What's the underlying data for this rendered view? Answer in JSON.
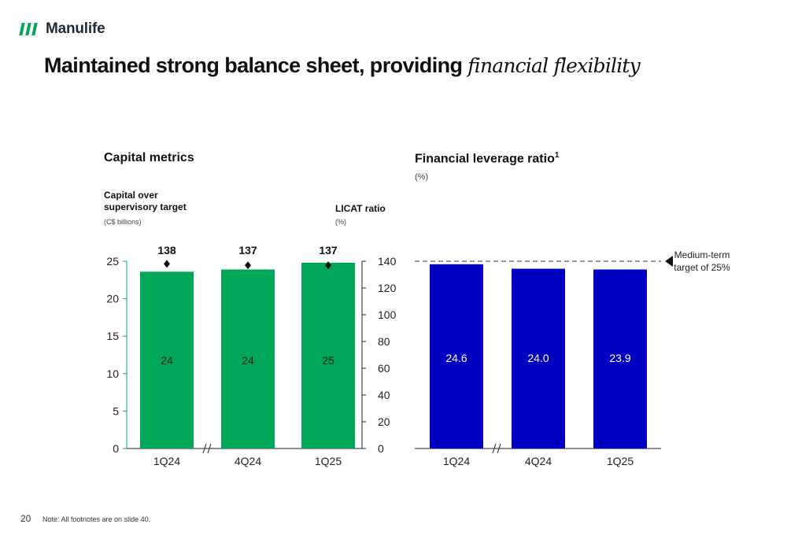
{
  "brand": {
    "name": "Manulife",
    "color": "#00a758"
  },
  "title": {
    "main": "Maintained strong balance sheet, providing",
    "italic": "financial flexibility"
  },
  "capital_metrics": {
    "heading": "Capital metrics",
    "left_axis_title": "Capital over supervisory target",
    "left_axis_unit": "(C$ billions)",
    "right_axis_title": "LICAT ratio",
    "right_axis_unit": "(%)",
    "bar_color": "#00a758"
  },
  "financial_leverage": {
    "heading": "Financial leverage ratio",
    "footnote_marker": "1",
    "unit": "(%)",
    "target_label_line1": "Medium-term",
    "target_label_line2": "target of 25%",
    "bar_color": "#0000c1"
  },
  "page_number": "20",
  "note": "Note: All footnotes are on slide 40.",
  "chart_data": [
    {
      "type": "bar",
      "categories": [
        "1Q24",
        "4Q24",
        "1Q25"
      ],
      "series": [
        {
          "name": "Capital over supervisory target",
          "values": [
            23.6,
            23.9,
            24.8
          ],
          "data_labels": [
            "24",
            "24",
            "25"
          ]
        },
        {
          "name": "LICAT ratio",
          "values": [
            138,
            137,
            137
          ],
          "data_labels": [
            "138",
            "137",
            "137"
          ],
          "marker": "diamond",
          "axis": "right"
        }
      ],
      "ylim": [
        0,
        25
      ],
      "yticks": [
        0,
        5,
        10,
        15,
        20,
        25
      ],
      "y2lim": [
        0,
        140
      ],
      "y2ticks": [
        0,
        20,
        40,
        60,
        80,
        100,
        120,
        140
      ],
      "axis_break_after": "1Q24"
    },
    {
      "type": "bar",
      "categories": [
        "1Q24",
        "4Q24",
        "1Q25"
      ],
      "values": [
        24.6,
        24.0,
        23.9
      ],
      "data_labels": [
        "24.6",
        "24.0",
        "23.9"
      ],
      "ylim": [
        0,
        25
      ],
      "reference_line": 25,
      "axis_break_after": "1Q24"
    }
  ]
}
